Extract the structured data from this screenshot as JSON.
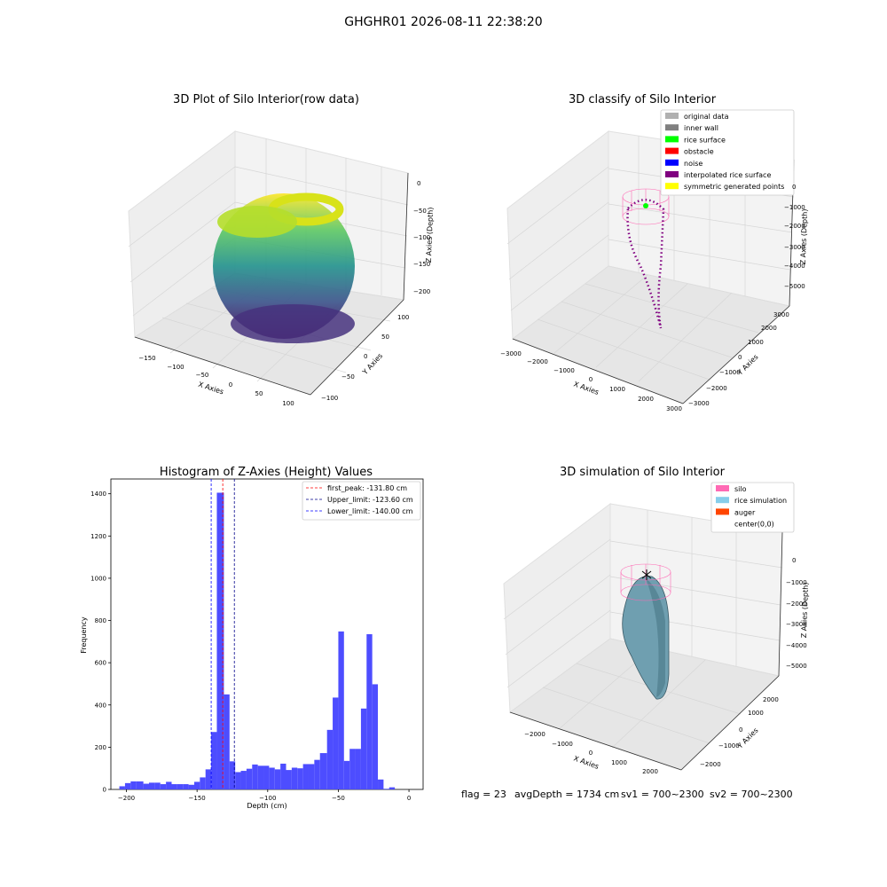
{
  "figure": {
    "title": "GHGHR01 2026-08-11 22:38:20",
    "status": {
      "flag": "flag = 23",
      "avg_depth": "avgDepth = 1734 cm",
      "sv1": "sv1 = 700~2300",
      "sv2": "sv2 = 700~2300"
    }
  },
  "chart_data": [
    {
      "type": "scatter",
      "projection": "3d",
      "title": "3D Plot of Silo Interior(row data)",
      "xlabel": "X Axies",
      "ylabel": "Y Axies",
      "zlabel": "Z Axies (Depth)",
      "x_ticks": [
        "−150",
        "−100",
        "−50",
        "0",
        "50",
        "100"
      ],
      "y_ticks": [
        "−100",
        "−50",
        "0",
        "50",
        "100"
      ],
      "z_ticks": [
        "0",
        "−50",
        "−100",
        "−150",
        "−200"
      ],
      "xlim": [
        -175,
        125
      ],
      "ylim": [
        -110,
        120
      ],
      "zlim": [
        -225,
        5
      ],
      "colormap": "viridis",
      "description_points": "point cloud of silo interior colored by depth"
    },
    {
      "type": "scatter",
      "projection": "3d",
      "title": "3D classify of Silo Interior",
      "xlabel": "X Axies",
      "ylabel": "Y Axies",
      "zlabel": "Z Axies (Depth)",
      "x_ticks": [
        "−3000",
        "−2000",
        "−1000",
        "0",
        "1000",
        "2000",
        "3000"
      ],
      "y_ticks": [
        "−3000",
        "−2000",
        "−1000",
        "0",
        "1000",
        "2000",
        "3000"
      ],
      "z_ticks": [
        "0",
        "−1000",
        "−2000",
        "−3000",
        "−4000",
        "−5000"
      ],
      "legend_position": "upper right",
      "legend": [
        {
          "label": "original data",
          "color": "#b0b0b0"
        },
        {
          "label": "inner wall",
          "color": "#808080"
        },
        {
          "label": "rice surface",
          "color": "#00ff00"
        },
        {
          "label": "obstacle",
          "color": "#ff0000"
        },
        {
          "label": "noise",
          "color": "#0000ff"
        },
        {
          "label": "interpolated rice surface",
          "color": "#800080"
        },
        {
          "label": "symmetric generated points",
          "color": "#ffff00"
        }
      ]
    },
    {
      "type": "bar",
      "title": "Histogram of Z-Axies (Height) Values",
      "xlabel": "Depth (cm)",
      "ylabel": "Frequency",
      "xlim": [
        -211,
        10
      ],
      "ylim": [
        0,
        1470
      ],
      "bar_color": "#4d4dff",
      "bins": [
        {
          "x0": -205,
          "x1": -201,
          "v": 15
        },
        {
          "x0": -201,
          "x1": -197,
          "v": 30
        },
        {
          "x0": -197,
          "x1": -193,
          "v": 38
        },
        {
          "x0": -193,
          "x1": -188,
          "v": 38
        },
        {
          "x0": -188,
          "x1": -184,
          "v": 27
        },
        {
          "x0": -184,
          "x1": -180,
          "v": 32
        },
        {
          "x0": -180,
          "x1": -176,
          "v": 32
        },
        {
          "x0": -176,
          "x1": -172,
          "v": 25
        },
        {
          "x0": -172,
          "x1": -168,
          "v": 36
        },
        {
          "x0": -168,
          "x1": -164,
          "v": 25
        },
        {
          "x0": -164,
          "x1": -160,
          "v": 25
        },
        {
          "x0": -160,
          "x1": -156,
          "v": 25
        },
        {
          "x0": -156,
          "x1": -152,
          "v": 22
        },
        {
          "x0": -152,
          "x1": -148,
          "v": 36
        },
        {
          "x0": -148,
          "x1": -144,
          "v": 57
        },
        {
          "x0": -144,
          "x1": -140,
          "v": 95
        },
        {
          "x0": -140,
          "x1": -136,
          "v": 272
        },
        {
          "x0": -136,
          "x1": -131,
          "v": 1405
        },
        {
          "x0": -131,
          "x1": -127,
          "v": 450
        },
        {
          "x0": -127,
          "x1": -123,
          "v": 133
        },
        {
          "x0": -123,
          "x1": -119,
          "v": 82
        },
        {
          "x0": -119,
          "x1": -115,
          "v": 88
        },
        {
          "x0": -115,
          "x1": -111,
          "v": 98
        },
        {
          "x0": -111,
          "x1": -107,
          "v": 118
        },
        {
          "x0": -107,
          "x1": -103,
          "v": 112
        },
        {
          "x0": -103,
          "x1": -99,
          "v": 112
        },
        {
          "x0": -99,
          "x1": -95,
          "v": 103
        },
        {
          "x0": -95,
          "x1": -91,
          "v": 95
        },
        {
          "x0": -91,
          "x1": -87,
          "v": 122
        },
        {
          "x0": -87,
          "x1": -83,
          "v": 92
        },
        {
          "x0": -83,
          "x1": -79,
          "v": 103
        },
        {
          "x0": -79,
          "x1": -75,
          "v": 100
        },
        {
          "x0": -75,
          "x1": -71,
          "v": 120
        },
        {
          "x0": -71,
          "x1": -67,
          "v": 120
        },
        {
          "x0": -67,
          "x1": -63,
          "v": 140
        },
        {
          "x0": -63,
          "x1": -58,
          "v": 172
        },
        {
          "x0": -58,
          "x1": -54,
          "v": 282
        },
        {
          "x0": -54,
          "x1": -50,
          "v": 435
        },
        {
          "x0": -50,
          "x1": -46,
          "v": 748
        },
        {
          "x0": -46,
          "x1": -42,
          "v": 135
        },
        {
          "x0": -42,
          "x1": -38,
          "v": 192
        },
        {
          "x0": -38,
          "x1": -34,
          "v": 192
        },
        {
          "x0": -34,
          "x1": -30,
          "v": 383
        },
        {
          "x0": -30,
          "x1": -26,
          "v": 735
        },
        {
          "x0": -26,
          "x1": -22,
          "v": 498
        },
        {
          "x0": -22,
          "x1": -18,
          "v": 47
        },
        {
          "x0": -18,
          "x1": -14,
          "v": 3
        },
        {
          "x0": -14,
          "x1": -10,
          "v": 10
        }
      ],
      "x_ticks": [
        {
          "v": -200,
          "label": "−200"
        },
        {
          "v": -150,
          "label": "−150"
        },
        {
          "v": -100,
          "label": "−100"
        },
        {
          "v": -50,
          "label": "−50"
        },
        {
          "v": 0,
          "label": "0"
        }
      ],
      "y_ticks": [
        {
          "v": 0,
          "label": "0"
        },
        {
          "v": 200,
          "label": "200"
        },
        {
          "v": 400,
          "label": "400"
        },
        {
          "v": 600,
          "label": "600"
        },
        {
          "v": 800,
          "label": "800"
        },
        {
          "v": 1000,
          "label": "1000"
        },
        {
          "v": 1200,
          "label": "1200"
        },
        {
          "v": 1400,
          "label": "1400"
        }
      ],
      "vlines": [
        {
          "x": -131.8,
          "color": "#ff0000",
          "label": "first_peak: -131.80 cm"
        },
        {
          "x": -123.6,
          "color": "#00008b",
          "label": "Upper_limit: -123.60 cm"
        },
        {
          "x": -140.0,
          "color": "#0000ff",
          "label": "Lower_limit: -140.00 cm"
        }
      ],
      "legend_position": "upper right"
    },
    {
      "type": "surface",
      "projection": "3d",
      "title": "3D simulation of Silo Interior",
      "xlabel": "X Axies",
      "ylabel": "Y Axies",
      "zlabel": "Z Axies (Depth)",
      "x_ticks": [
        "−2000",
        "−1000",
        "0",
        "1000",
        "2000"
      ],
      "y_ticks": [
        "−2000",
        "−1000",
        "0",
        "1000",
        "2000"
      ],
      "z_ticks": [
        "0",
        "−1000",
        "−2000",
        "−3000",
        "−4000",
        "−5000"
      ],
      "legend_position": "upper right",
      "legend": [
        {
          "label": "silo",
          "color": "#ff69b4"
        },
        {
          "label": "rice simulation",
          "color": "#87ceeb"
        },
        {
          "label": "auger",
          "color": "#ff4500"
        },
        {
          "label": "center(0,0)",
          "color": "#000000"
        }
      ]
    }
  ]
}
